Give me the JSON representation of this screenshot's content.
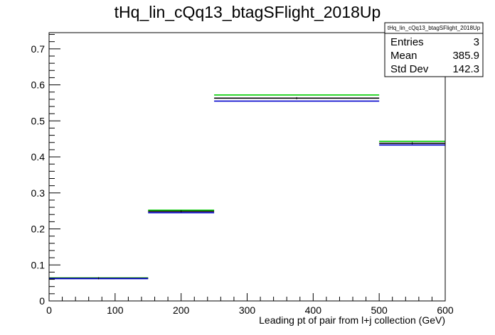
{
  "chart_data": {
    "type": "histogram",
    "title": "tHq_lin_cQq13_btagSFlight_2018Up",
    "xlabel": "Leading pt of pair from l+j collection (GeV)",
    "ylabel": "",
    "xlim": [
      0,
      600
    ],
    "ylim": [
      0,
      0.745
    ],
    "xticks": [
      0,
      100,
      200,
      300,
      400,
      500,
      600
    ],
    "xtick_labels": [
      "0",
      "100",
      "200",
      "300",
      "400",
      "500",
      "600"
    ],
    "yticks": [
      0,
      0.1,
      0.2,
      0.3,
      0.4,
      0.5,
      0.6,
      0.7
    ],
    "ytick_labels": [
      "0",
      "0.1",
      "0.2",
      "0.3",
      "0.4",
      "0.5",
      "0.6",
      "0.7"
    ],
    "grid": false,
    "bin_edges": [
      0,
      150,
      250,
      500,
      600
    ],
    "series": [
      {
        "color": "#00cc00",
        "values": [
          0.064,
          0.252,
          0.572,
          0.443
        ]
      },
      {
        "color": "#000000",
        "values": [
          0.063,
          0.249,
          0.563,
          0.438
        ]
      },
      {
        "color": "#0000cc",
        "values": [
          0.062,
          0.245,
          0.555,
          0.433
        ]
      }
    ],
    "stats_box": {
      "title": "tHq_lin_cQq13_btagSFlight_2018Up",
      "rows": [
        {
          "label": "Entries",
          "value": "3"
        },
        {
          "label": "Mean",
          "value": "385.9"
        },
        {
          "label": "Std Dev",
          "value": "142.3"
        }
      ],
      "placement": "top-right"
    }
  }
}
